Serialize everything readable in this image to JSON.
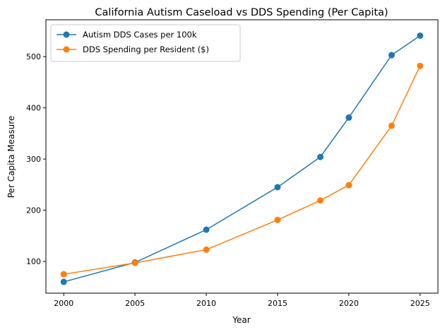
{
  "chart_data": {
    "type": "line",
    "title": "California Autism Caseload vs DDS Spending (Per Capita)",
    "xlabel": "Year",
    "ylabel": "Per Capita Measure",
    "x": [
      2000,
      2005,
      2010,
      2015,
      2018,
      2020,
      2023,
      2025
    ],
    "xticks": [
      2000,
      2005,
      2010,
      2015,
      2020,
      2025
    ],
    "yticks": [
      100,
      200,
      300,
      400,
      500
    ],
    "xlim": [
      1998.75,
      2026.25
    ],
    "ylim": [
      38,
      572
    ],
    "legend_position": "top-left",
    "grid": false,
    "series": [
      {
        "name": "Autism DDS Cases per 100k",
        "color": "#1f77b4",
        "values": [
          60,
          98,
          162,
          245,
          304,
          381,
          503,
          541
        ]
      },
      {
        "name": "DDS Spending per Resident ($)",
        "color": "#ff7f0e",
        "values": [
          75,
          97,
          123,
          181,
          219,
          249,
          365,
          482
        ]
      }
    ]
  }
}
